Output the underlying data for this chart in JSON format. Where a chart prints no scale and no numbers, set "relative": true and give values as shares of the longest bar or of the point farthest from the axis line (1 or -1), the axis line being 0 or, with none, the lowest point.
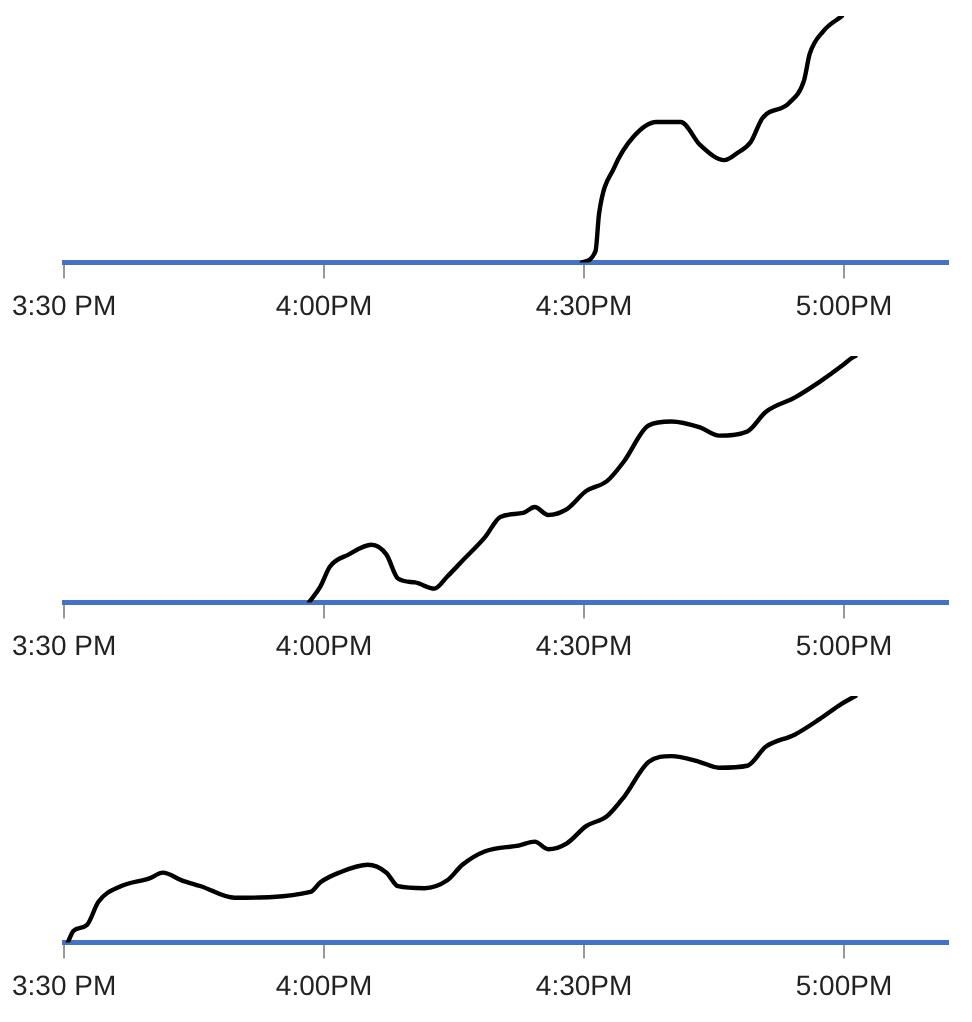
{
  "chart_data": [
    {
      "type": "line",
      "relative": true,
      "xlim": [
        15.5,
        17.2
      ],
      "xticks": [
        {
          "value": 15.5,
          "label": "3:30 PM"
        },
        {
          "value": 16,
          "label": "4:00PM"
        },
        {
          "value": 16.5,
          "label": "4:30PM"
        },
        {
          "value": 17,
          "label": "5:00PM"
        }
      ],
      "grid": false,
      "marker": "none",
      "line_style": "solid",
      "series": [
        {
          "color": "#000000",
          "x": [
            16.496,
            16.522,
            16.529,
            16.558,
            16.595,
            16.639,
            16.686,
            16.723,
            16.77,
            16.796,
            16.821,
            16.843,
            16.894,
            16.923,
            16.934,
            16.96,
            16.996
          ],
          "values": [
            0,
            0.046,
            0.2,
            0.385,
            0.51,
            0.57,
            0.57,
            0.477,
            0.415,
            0.446,
            0.49,
            0.585,
            0.646,
            0.738,
            0.846,
            0.938,
            1.0
          ]
        }
      ]
    },
    {
      "type": "line",
      "relative": true,
      "xlim": [
        15.5,
        17.2
      ],
      "xticks": [
        {
          "value": 15.5,
          "label": "3:30 PM"
        },
        {
          "value": 16,
          "label": "4:00PM"
        },
        {
          "value": 16.5,
          "label": "4:30PM"
        },
        {
          "value": 17,
          "label": "5:00PM"
        }
      ],
      "grid": false,
      "marker": "none",
      "line_style": "solid",
      "series": [
        {
          "color": "#000000",
          "x": [
            15.971,
            15.993,
            16.011,
            16.047,
            16.091,
            16.12,
            16.142,
            16.175,
            16.212,
            16.237,
            16.266,
            16.31,
            16.339,
            16.383,
            16.405,
            16.431,
            16.467,
            16.504,
            16.544,
            16.577,
            16.624,
            16.668,
            16.723,
            16.759,
            16.814,
            16.85,
            16.905,
            16.953,
            16.996,
            17.015,
            17.022
          ],
          "values": [
            0,
            0.065,
            0.145,
            0.194,
            0.234,
            0.194,
            0.097,
            0.081,
            0.056,
            0.105,
            0.169,
            0.266,
            0.347,
            0.363,
            0.387,
            0.355,
            0.379,
            0.452,
            0.492,
            0.573,
            0.718,
            0.734,
            0.71,
            0.677,
            0.694,
            0.774,
            0.831,
            0.895,
            0.96,
            0.992,
            1.0
          ]
        }
      ]
    },
    {
      "type": "line",
      "relative": true,
      "xlim": [
        15.5,
        17.2
      ],
      "xticks": [
        {
          "value": 15.5,
          "label": "3:30 PM"
        },
        {
          "value": 16,
          "label": "4:00PM"
        },
        {
          "value": 16.5,
          "label": "4:30PM"
        },
        {
          "value": 17,
          "label": "5:00PM"
        }
      ],
      "grid": false,
      "marker": "none",
      "line_style": "solid",
      "series": [
        {
          "color": "#000000",
          "x": [
            15.507,
            15.518,
            15.544,
            15.566,
            15.609,
            15.664,
            15.69,
            15.726,
            15.763,
            15.828,
            15.974,
            15.993,
            16.029,
            16.084,
            16.12,
            16.142,
            16.193,
            16.237,
            16.266,
            16.31,
            16.376,
            16.405,
            16.431,
            16.467,
            16.504,
            16.544,
            16.577,
            16.624,
            16.668,
            16.723,
            16.759,
            16.814,
            16.85,
            16.905,
            16.953,
            16.996,
            17.022
          ],
          "values": [
            0,
            0.047,
            0.071,
            0.165,
            0.228,
            0.26,
            0.283,
            0.252,
            0.228,
            0.181,
            0.205,
            0.244,
            0.283,
            0.315,
            0.283,
            0.228,
            0.22,
            0.252,
            0.315,
            0.37,
            0.394,
            0.409,
            0.378,
            0.402,
            0.472,
            0.512,
            0.591,
            0.732,
            0.756,
            0.732,
            0.709,
            0.717,
            0.795,
            0.843,
            0.906,
            0.969,
            1.0
          ]
        }
      ]
    }
  ]
}
